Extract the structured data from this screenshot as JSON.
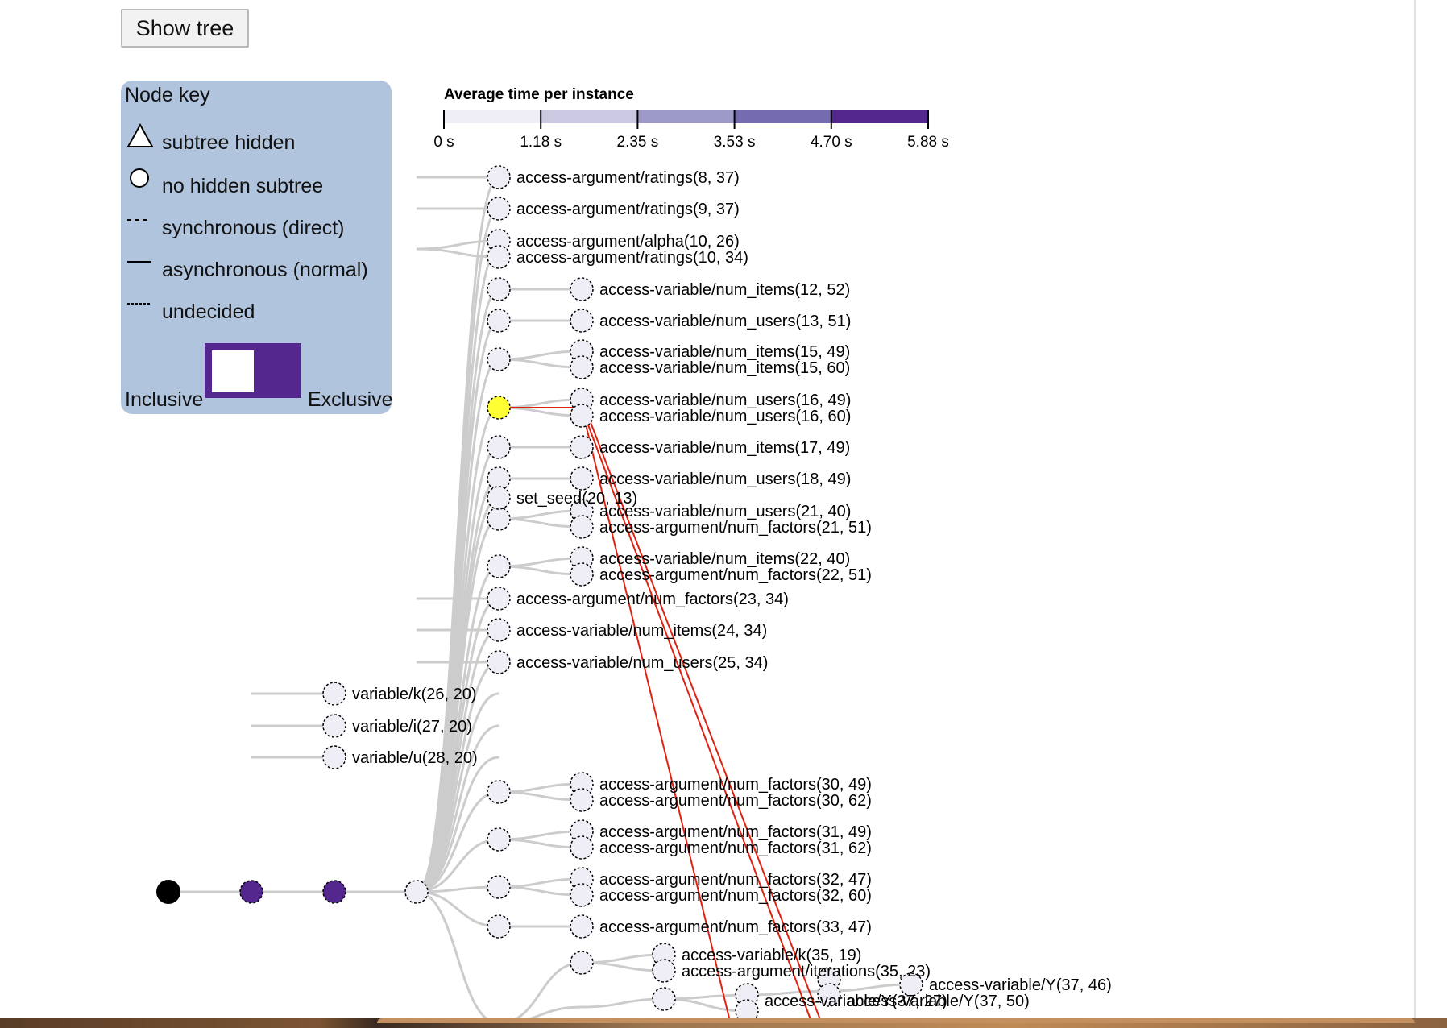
{
  "toolbar": {
    "show_tree_label": "Show tree"
  },
  "node_key": {
    "title": "Node key",
    "subtree_hidden": "subtree hidden",
    "no_hidden_subtree": "no hidden subtree",
    "synchronous": "synchronous (direct)",
    "asynchronous": "asynchronous (normal)",
    "undecided": "undecided",
    "inclusive": "Inclusive",
    "exclusive": "Exclusive"
  },
  "colors": {
    "node_fill": "#efedf5",
    "dark_purple": "#54278f",
    "highlight": "#ffff33",
    "path": "#e02010",
    "link": "#cccccc",
    "panel": "#b0c4de"
  },
  "legend": {
    "title": "Average time per instance",
    "ticks": [
      "0 s",
      "1.18 s",
      "2.35 s",
      "3.53 s",
      "4.70 s",
      "5.88 s"
    ],
    "colors": [
      "#efedf5",
      "#cbc9e2",
      "#9e9ac8",
      "#756bb1",
      "#54278f"
    ]
  },
  "labels": [
    "access-argument/ratings(8, 37)",
    "access-argument/ratings(9, 37)",
    "access-argument/alpha(10, 26)",
    "access-argument/ratings(10, 34)",
    "access-variable/num_items(12, 52)",
    "access-variable/num_users(13, 51)",
    "access-variable/num_items(15, 49)",
    "access-variable/num_items(15, 60)",
    "access-variable/num_users(16, 49)",
    "access-variable/num_users(16, 60)",
    "access-variable/num_items(17, 49)",
    "access-variable/num_users(18, 49)",
    "set_seed(20, 13)",
    "access-variable/num_users(21, 40)",
    "access-argument/num_factors(21, 51)",
    "access-variable/num_items(22, 40)",
    "access-argument/num_factors(22, 51)",
    "access-argument/num_factors(23, 34)",
    "access-variable/num_items(24, 34)",
    "access-variable/num_users(25, 34)",
    "variable/k(26, 20)",
    "variable/i(27, 20)",
    "variable/u(28, 20)",
    "access-argument/num_factors(30, 49)",
    "access-argument/num_factors(30, 62)",
    "access-argument/num_factors(31, 49)",
    "access-argument/num_factors(31, 62)",
    "access-argument/num_factors(32, 47)",
    "access-argument/num_factors(32, 60)",
    "access-argument/num_factors(33, 47)",
    "access-variable/k(35, 19)",
    "access-argument/iterations(35, 23)",
    "access-variable/Y(37, 46)",
    "access-variable/Y(37, 27)",
    "access-variable/Y(37, 50)"
  ]
}
